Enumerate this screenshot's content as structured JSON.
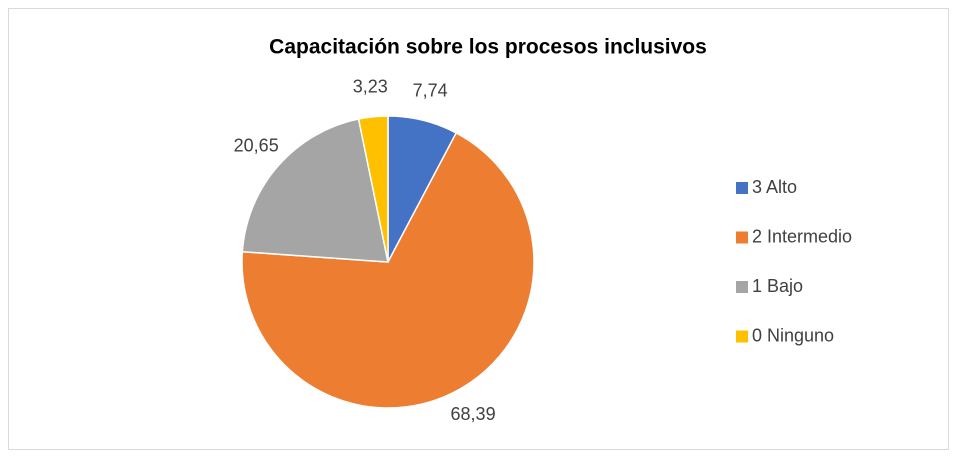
{
  "chart_data": {
    "type": "pie",
    "title": "Capacitación sobre los procesos inclusivos",
    "categories": [
      "3 Alto",
      "2 Intermedio",
      "1 Bajo",
      "0 Ninguno"
    ],
    "values": [
      7.74,
      68.39,
      20.65,
      3.23
    ],
    "value_labels": [
      "7,74",
      "68,39",
      "20,65",
      "3,23"
    ],
    "colors": [
      "#4472c4",
      "#ed7d31",
      "#a5a5a5",
      "#ffc000"
    ],
    "legend": "right"
  }
}
